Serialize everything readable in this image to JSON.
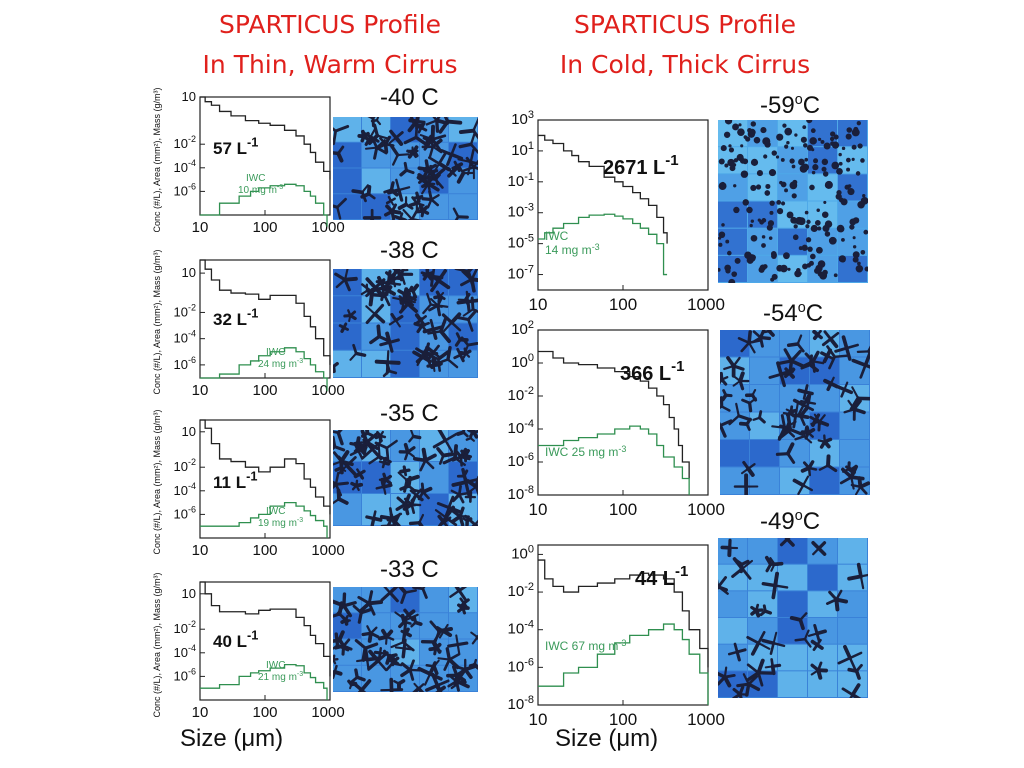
{
  "titles": {
    "left": [
      "SPARTICUS Profile",
      "In Thin, Warm Cirrus"
    ],
    "right": [
      "SPARTICUS Profile",
      "In Cold, Thick Cirrus"
    ]
  },
  "axis_label_x": "Size (μm)",
  "axis_label_y_left": "Conc (#/L), Area (mm²), Mass (g/m³)",
  "colors": {
    "title": "#e0201c",
    "concentration_line": "#222222",
    "iwc_line": "#2f8f4f",
    "iwc_label": "#3a9a5a",
    "crystal_bg_light": "#5fb0e6",
    "crystal_bg_dark": "#1f4fc0",
    "crystal_particle": "#1a1f3a"
  },
  "chart_data": [
    {
      "type": "line",
      "panel": "left-1",
      "temperature": "-40 C",
      "concentration_label": "57 L",
      "iwc_label": [
        "IWC",
        "10 mg m"
      ],
      "x_ticks": [
        "10",
        "100",
        "1000"
      ],
      "y_ticks": [
        "10",
        "10",
        "10",
        "10"
      ],
      "y_exponents": [
        "",
        "-2",
        "-4",
        "-6"
      ],
      "xscale": "log",
      "yscale": "log",
      "series": [
        {
          "x": [
            10,
            12,
            15,
            20,
            30,
            50,
            80,
            120,
            200,
            300,
            400,
            500,
            600,
            800,
            1000
          ],
          "y": [
            100,
            40,
            20,
            6,
            2.5,
            1,
            0.6,
            0.4,
            0.15,
            0.05,
            0.01,
            0.002,
            0.0003,
            5e-05,
            1e-05
          ]
        },
        {
          "x": [
            10,
            20,
            40,
            60,
            80,
            120,
            200,
            300,
            400,
            500,
            600,
            800,
            900
          ],
          "y": [
            1e-08,
            1e-07,
            4e-07,
            1e-06,
            2e-06,
            3e-06,
            4e-06,
            3e-06,
            1e-06,
            4e-07,
            1e-07,
            1e-08,
            1e-09
          ]
        }
      ]
    },
    {
      "type": "line",
      "panel": "left-2",
      "temperature": "-38 C",
      "concentration_label": "32 L",
      "iwc_label": [
        "IWC",
        "24 mg m"
      ],
      "x_ticks": [
        "10",
        "100",
        "1000"
      ],
      "y_ticks": [
        "10",
        "10",
        "10",
        "10"
      ],
      "y_exponents": [
        "",
        "-2",
        "-4",
        "-6"
      ],
      "xscale": "log",
      "yscale": "log",
      "series": [
        {
          "x": [
            10,
            12,
            15,
            20,
            30,
            50,
            80,
            120,
            200,
            300,
            400,
            500,
            600,
            800,
            1000
          ],
          "y": [
            100,
            20,
            3,
            0.5,
            0.3,
            0.25,
            0.1,
            0.2,
            0.2,
            0.05,
            0.005,
            0.0008,
            0.0001,
            5e-06,
            1e-06
          ]
        },
        {
          "x": [
            10,
            20,
            40,
            60,
            80,
            120,
            200,
            300,
            400,
            500,
            600,
            800,
            900
          ],
          "y": [
            1e-07,
            2e-07,
            1e-06,
            2e-06,
            5e-06,
            1e-05,
            2e-05,
            1e-05,
            3e-06,
            1e-06,
            3e-07,
            1e-07,
            1e-08
          ]
        }
      ]
    },
    {
      "type": "line",
      "panel": "left-3",
      "temperature": "-35 C",
      "concentration_label": "11 L",
      "iwc_label": [
        "IWC",
        "19 mg m"
      ],
      "x_ticks": [
        "10",
        "100",
        "1000"
      ],
      "y_ticks": [
        "10",
        "10",
        "10",
        "10"
      ],
      "y_exponents": [
        "",
        "-2",
        "-4",
        "-6"
      ],
      "xscale": "log",
      "yscale": "log",
      "series": [
        {
          "x": [
            10,
            12,
            15,
            20,
            30,
            50,
            80,
            120,
            200,
            300,
            400,
            500,
            600,
            800,
            1000
          ],
          "y": [
            100,
            20,
            1,
            0.05,
            0.03,
            0.01,
            0.004,
            0.01,
            0.05,
            0.02,
            0.001,
            0.0002,
            3e-05,
            5e-06,
            1e-06
          ]
        },
        {
          "x": [
            10,
            20,
            40,
            60,
            80,
            120,
            200,
            300,
            400,
            500,
            600,
            800,
            900
          ],
          "y": [
            1e-07,
            1e-07,
            2e-07,
            5e-07,
            1e-06,
            5e-06,
            1e-05,
            5e-06,
            2e-06,
            8e-07,
            3e-07,
            1e-07,
            1e-08
          ]
        }
      ]
    },
    {
      "type": "line",
      "panel": "left-4",
      "temperature": "-33 C",
      "concentration_label": "40 L",
      "iwc_label": [
        "IWC",
        "21 mg m"
      ],
      "x_ticks": [
        "10",
        "100",
        "1000"
      ],
      "y_ticks": [
        "10",
        "10",
        "10",
        "10"
      ],
      "y_exponents": [
        "",
        "-2",
        "-4",
        "-6"
      ],
      "xscale": "log",
      "yscale": "log",
      "series": [
        {
          "x": [
            10,
            12,
            15,
            20,
            30,
            50,
            80,
            120,
            200,
            300,
            400,
            500,
            600,
            800,
            1000
          ],
          "y": [
            100,
            10,
            1,
            0.3,
            0.3,
            0.2,
            0.4,
            0.5,
            0.5,
            0.1,
            0.02,
            0.003,
            0.0006,
            5e-05,
            1e-06
          ]
        },
        {
          "x": [
            10,
            20,
            40,
            60,
            80,
            120,
            200,
            300,
            400,
            500,
            600,
            800,
            900
          ],
          "y": [
            1e-07,
            2e-07,
            1e-06,
            2e-06,
            3e-06,
            5e-06,
            1e-05,
            8e-06,
            2e-06,
            8e-07,
            3e-07,
            1e-07,
            1e-08
          ]
        }
      ]
    },
    {
      "type": "line",
      "panel": "right-1",
      "temperature": "-59",
      "temperature_unit": "C",
      "concentration_label": "2671 L",
      "iwc_label": [
        "IWC",
        "14 mg m"
      ],
      "x_ticks": [
        "10",
        "100",
        "1000"
      ],
      "y_ticks": [
        "10",
        "10",
        "10",
        "10",
        "10",
        "10"
      ],
      "y_exponents": [
        "3",
        "1",
        "-1",
        "-3",
        "-5",
        "-7"
      ],
      "xscale": "log",
      "yscale": "log",
      "series": [
        {
          "x": [
            10,
            12,
            15,
            20,
            25,
            30,
            40,
            60,
            80,
            100,
            130,
            160,
            200,
            250,
            300,
            330
          ],
          "y": [
            100,
            50,
            30,
            10,
            5,
            2,
            1,
            0.2,
            0.1,
            0.05,
            0.02,
            0.008,
            0.003,
            0.0005,
            5e-05,
            1e-05
          ]
        },
        {
          "x": [
            10,
            12,
            15,
            20,
            30,
            40,
            60,
            80,
            100,
            130,
            160,
            200,
            250,
            300,
            330
          ],
          "y": [
            2e-05,
            5e-05,
            0.0001,
            0.0002,
            0.0005,
            0.0007,
            0.0008,
            0.0006,
            0.0004,
            0.0002,
            0.0001,
            4e-05,
            1e-05,
            1e-07,
            1e-07
          ]
        }
      ]
    },
    {
      "type": "line",
      "panel": "right-2",
      "temperature": "-54",
      "temperature_unit": "C",
      "concentration_label": "366 L",
      "iwc_label": [
        "IWC 25 mg m"
      ],
      "x_ticks": [
        "10",
        "100",
        "1000"
      ],
      "y_ticks": [
        "10",
        "10",
        "10",
        "10",
        "10",
        "10"
      ],
      "y_exponents": [
        "2",
        "0",
        "-2",
        "-4",
        "-6",
        "-8"
      ],
      "xscale": "log",
      "yscale": "log",
      "series": [
        {
          "x": [
            10,
            15,
            20,
            30,
            50,
            80,
            120,
            160,
            200,
            250,
            300,
            350,
            400,
            450,
            500,
            600
          ],
          "y": [
            5,
            2,
            1,
            0.8,
            0.5,
            0.3,
            0.15,
            0.08,
            0.03,
            0.01,
            0.003,
            0.0005,
            0.0001,
            1e-05,
            1e-06,
            1e-07
          ]
        },
        {
          "x": [
            10,
            20,
            30,
            50,
            80,
            120,
            160,
            200,
            250,
            300,
            400,
            500,
            600
          ],
          "y": [
            1e-05,
            2e-05,
            3e-05,
            5e-05,
            0.0001,
            0.00015,
            0.0001,
            5e-05,
            1e-05,
            2e-06,
            5e-07,
            1e-07,
            1e-08
          ]
        }
      ]
    },
    {
      "type": "line",
      "panel": "right-3",
      "temperature": "-49",
      "temperature_unit": "C",
      "concentration_label": "44 L",
      "iwc_label": [
        "IWC 67 mg m"
      ],
      "x_ticks": [
        "10",
        "100",
        "1000"
      ],
      "y_ticks": [
        "10",
        "10",
        "10",
        "10",
        "10"
      ],
      "y_exponents": [
        "0",
        "-2",
        "-4",
        "-6",
        "-8"
      ],
      "xscale": "log",
      "yscale": "log",
      "series": [
        {
          "x": [
            10,
            12,
            15,
            20,
            30,
            50,
            80,
            120,
            160,
            200,
            300,
            400,
            500,
            600,
            800,
            1000
          ],
          "y": [
            0.5,
            0.05,
            0.02,
            0.01,
            0.02,
            0.03,
            0.05,
            0.08,
            0.1,
            0.08,
            0.05,
            0.01,
            0.001,
            0.0001,
            1e-05,
            1e-06
          ]
        },
        {
          "x": [
            10,
            20,
            30,
            50,
            80,
            120,
            200,
            300,
            400,
            500,
            600,
            800,
            1000
          ],
          "y": [
            1e-07,
            5e-07,
            1e-06,
            5e-06,
            2e-05,
            5e-05,
            0.0001,
            0.0002,
            0.0001,
            3e-05,
            5e-06,
            5e-07,
            1e-08
          ]
        }
      ]
    }
  ]
}
